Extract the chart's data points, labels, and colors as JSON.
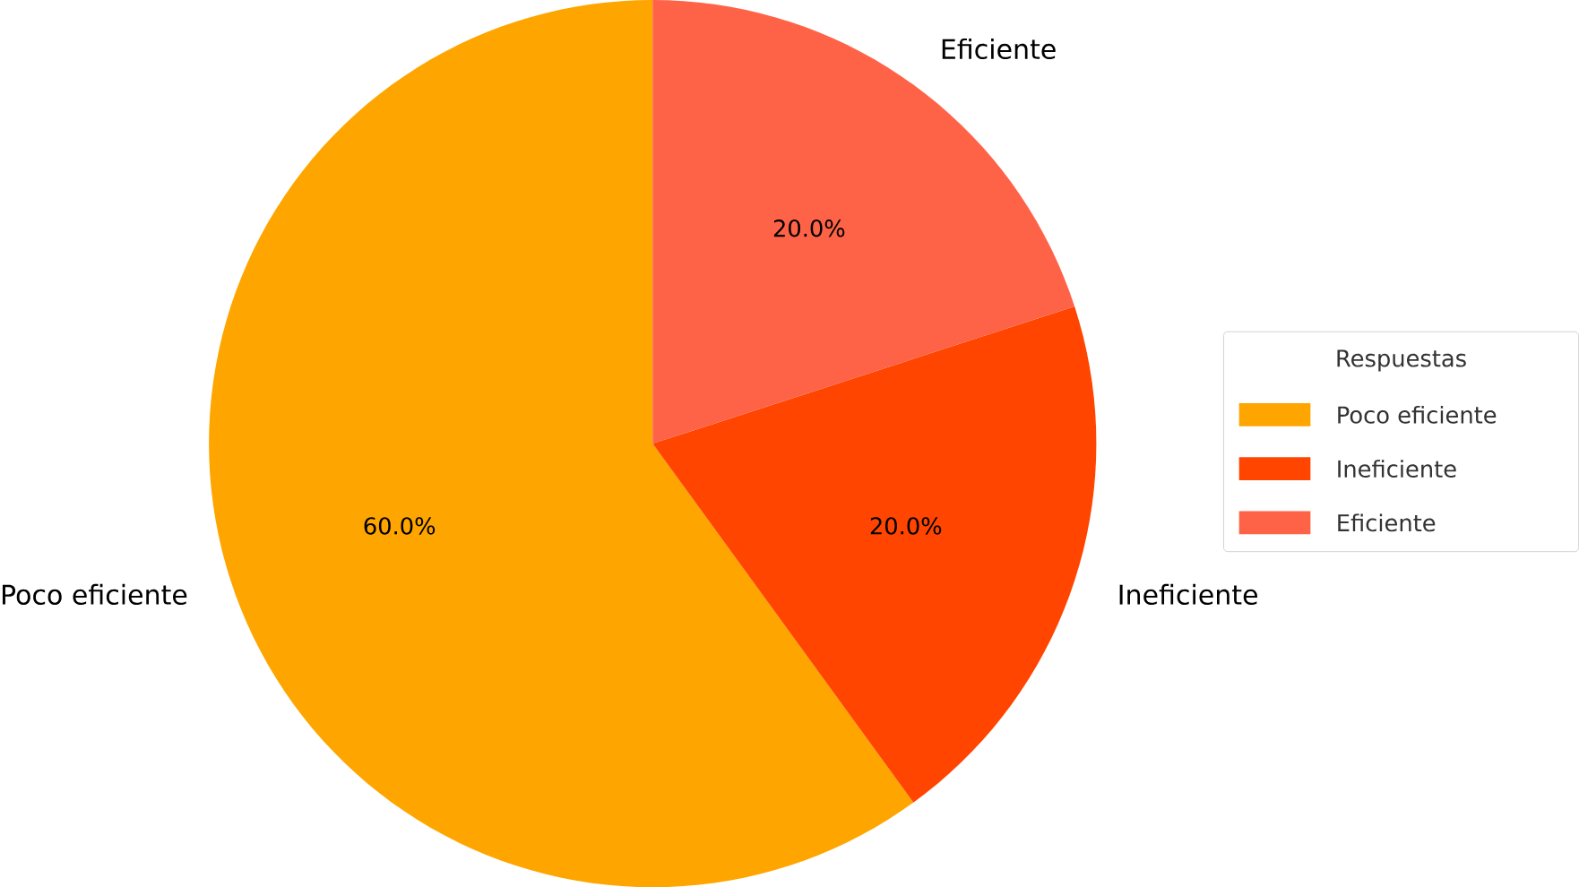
{
  "chart_data": {
    "type": "pie",
    "legend_title": "Respuestas",
    "categories": [
      "Poco eficiente",
      "Ineficiente",
      "Eficiente"
    ],
    "values": [
      60,
      20,
      20
    ],
    "colors": [
      "#ffa500",
      "#ff4500",
      "#ff6347"
    ],
    "value_labels": [
      "60.0%",
      "20.0%",
      "20.0%"
    ],
    "legend": "right"
  }
}
